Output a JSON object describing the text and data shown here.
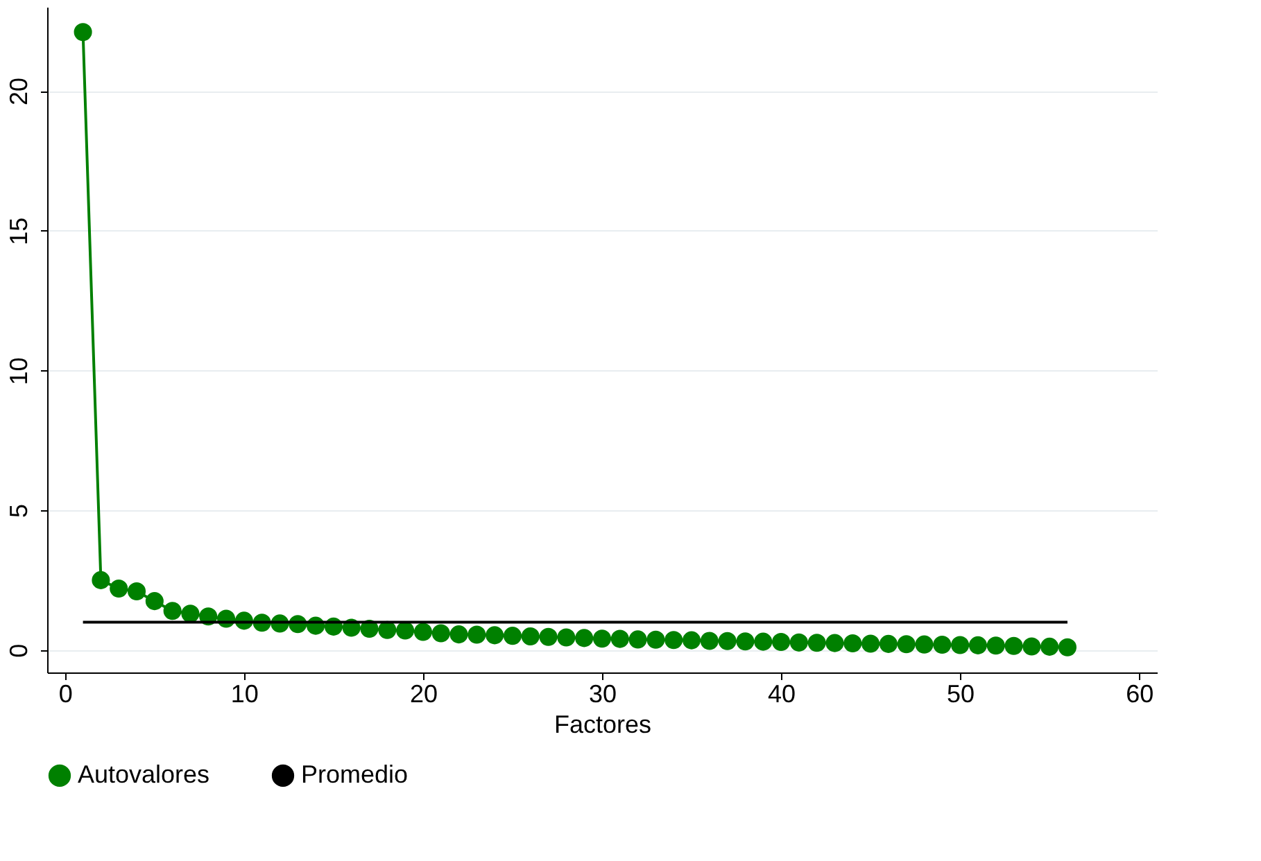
{
  "chart_data": {
    "type": "line",
    "xlabel": "Factores",
    "xlim": [
      -1,
      61
    ],
    "xticks": [
      0,
      10,
      20,
      30,
      40,
      50,
      60
    ],
    "ylim": [
      -0.8,
      23
    ],
    "yticks": [
      0,
      5,
      10,
      15,
      20
    ],
    "grid": "y",
    "legend": "bottom",
    "series": [
      {
        "name": "Autovalores",
        "color": "#008000",
        "marker": "circle",
        "x": [
          1,
          2,
          3,
          4,
          5,
          6,
          7,
          8,
          9,
          10,
          11,
          12,
          13,
          14,
          15,
          16,
          17,
          18,
          19,
          20,
          21,
          22,
          23,
          24,
          25,
          26,
          27,
          28,
          29,
          30,
          31,
          32,
          33,
          34,
          35,
          36,
          37,
          38,
          39,
          40,
          41,
          42,
          43,
          44,
          45,
          46,
          47,
          48,
          49,
          50,
          51,
          52,
          53,
          54,
          55,
          56
        ],
        "values": [
          22.1,
          2.5,
          2.2,
          2.1,
          1.75,
          1.4,
          1.3,
          1.2,
          1.12,
          1.05,
          0.98,
          0.95,
          0.93,
          0.87,
          0.84,
          0.8,
          0.76,
          0.72,
          0.7,
          0.65,
          0.6,
          0.56,
          0.55,
          0.53,
          0.51,
          0.49,
          0.47,
          0.45,
          0.43,
          0.41,
          0.4,
          0.38,
          0.37,
          0.36,
          0.35,
          0.33,
          0.32,
          0.31,
          0.3,
          0.29,
          0.27,
          0.26,
          0.25,
          0.24,
          0.23,
          0.22,
          0.21,
          0.2,
          0.19,
          0.18,
          0.17,
          0.16,
          0.15,
          0.13,
          0.12,
          0.1
        ]
      },
      {
        "name": "Promedio",
        "color": "#000000",
        "marker": "none",
        "x": [
          1,
          56
        ],
        "values": [
          1,
          1
        ]
      }
    ]
  }
}
